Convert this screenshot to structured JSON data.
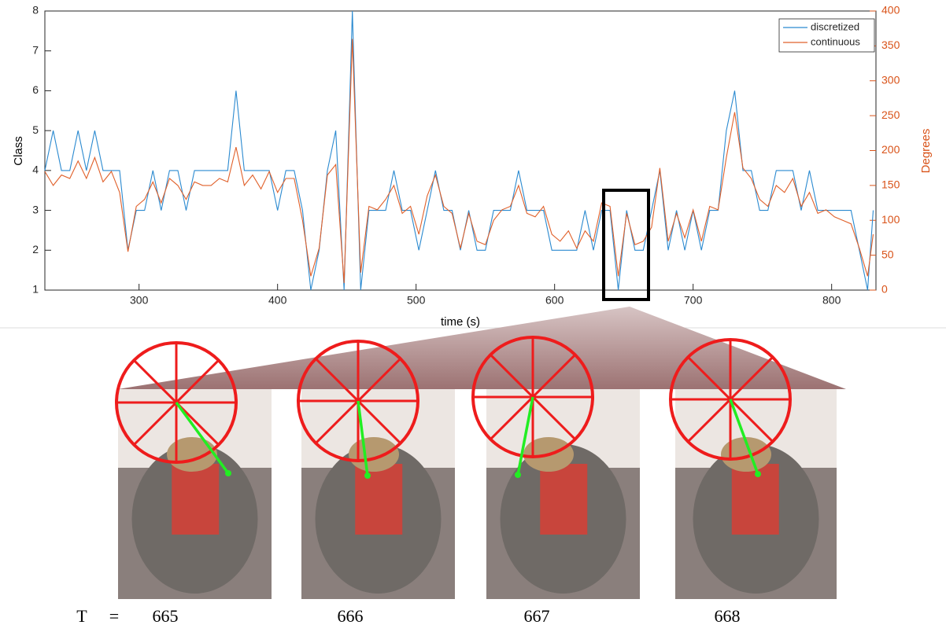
{
  "chart_data": {
    "type": "line",
    "xlabel": "time (s)",
    "ylabel": "Class",
    "y2label": "Degrees",
    "x": [
      232,
      238,
      244,
      250,
      256,
      262,
      268,
      274,
      280,
      286,
      292,
      298,
      304,
      310,
      316,
      322,
      328,
      334,
      340,
      346,
      352,
      358,
      364,
      370,
      376,
      382,
      388,
      394,
      400,
      406,
      412,
      418,
      424,
      430,
      436,
      442,
      448,
      454,
      460,
      466,
      472,
      478,
      484,
      490,
      496,
      502,
      508,
      514,
      520,
      526,
      532,
      538,
      544,
      550,
      556,
      562,
      568,
      574,
      580,
      586,
      592,
      598,
      604,
      610,
      616,
      622,
      628,
      634,
      640,
      646,
      652,
      658,
      664,
      670,
      676,
      682,
      688,
      694,
      700,
      706,
      712,
      718,
      724,
      730,
      736,
      742,
      748,
      754,
      760,
      766,
      772,
      778,
      784,
      790,
      796,
      802,
      808,
      814,
      820,
      826,
      830
    ],
    "series": [
      {
        "name": "discretized",
        "color": "#2b8ad0",
        "values": [
          4,
          5,
          4,
          4,
          5,
          4,
          5,
          4,
          4,
          4,
          2,
          3,
          3,
          4,
          3,
          4,
          4,
          3,
          4,
          4,
          4,
          4,
          4,
          6,
          4,
          4,
          4,
          4,
          3,
          4,
          4,
          3,
          1,
          2,
          4,
          5,
          1,
          8,
          1,
          3,
          3,
          3,
          4,
          3,
          3,
          2,
          3,
          4,
          3,
          3,
          2,
          3,
          2,
          2,
          3,
          3,
          3,
          4,
          3,
          3,
          3,
          2,
          2,
          2,
          2,
          3,
          2,
          3,
          3,
          1,
          3,
          2,
          2,
          3,
          4,
          2,
          3,
          2,
          3,
          2,
          3,
          3,
          5,
          6,
          4,
          4,
          3,
          3,
          4,
          4,
          4,
          3,
          4,
          3,
          3,
          3,
          3,
          3,
          2,
          1,
          3
        ]
      },
      {
        "name": "continuous",
        "color": "#e0602a",
        "axis": "y2",
        "values": [
          170,
          150,
          165,
          160,
          185,
          160,
          190,
          155,
          170,
          140,
          55,
          120,
          130,
          155,
          125,
          160,
          150,
          130,
          155,
          150,
          150,
          160,
          155,
          205,
          150,
          165,
          145,
          170,
          140,
          160,
          160,
          100,
          20,
          60,
          165,
          180,
          10,
          360,
          25,
          120,
          115,
          130,
          150,
          110,
          120,
          80,
          135,
          165,
          120,
          110,
          60,
          110,
          70,
          65,
          100,
          115,
          120,
          150,
          110,
          105,
          120,
          80,
          70,
          85,
          60,
          85,
          70,
          125,
          120,
          20,
          110,
          65,
          70,
          90,
          175,
          70,
          110,
          75,
          115,
          70,
          120,
          115,
          190,
          255,
          175,
          160,
          130,
          120,
          150,
          140,
          160,
          120,
          140,
          110,
          115,
          105,
          100,
          95,
          60,
          20,
          80
        ]
      }
    ],
    "xlim": [
      232,
      832
    ],
    "xticks": [
      300,
      400,
      500,
      600,
      700,
      800
    ],
    "ylim": [
      1,
      8
    ],
    "yticks": [
      1,
      2,
      3,
      4,
      5,
      6,
      7,
      8
    ],
    "y2lim": [
      0,
      400
    ],
    "y2ticks": [
      0,
      50,
      100,
      150,
      200,
      250,
      300,
      350,
      400
    ],
    "legend": "upper right",
    "grid": false
  },
  "frames": {
    "label": "T",
    "equals": "=",
    "times": [
      "665",
      "666",
      "667",
      "668"
    ]
  }
}
